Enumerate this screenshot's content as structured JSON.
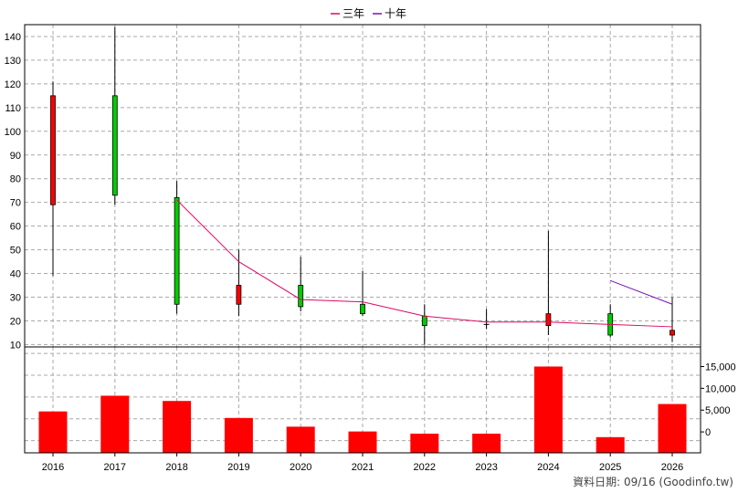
{
  "chart_data": [
    {
      "type": "candlestick",
      "legend": [
        {
          "name": "三年",
          "color": "#dc0a64"
        },
        {
          "name": "十年",
          "color": "#7a10b8"
        }
      ],
      "categories": [
        "2016",
        "2017",
        "2018",
        "2019",
        "2020",
        "2021",
        "2022",
        "2023",
        "2024",
        "2025",
        "2026"
      ],
      "ylim": [
        9,
        145
      ],
      "yticks": [
        10,
        20,
        30,
        40,
        50,
        60,
        70,
        80,
        90,
        100,
        110,
        120,
        130,
        140
      ],
      "grid": true,
      "candles": [
        {
          "year": "2016",
          "open": 69,
          "close": 115,
          "high": 121,
          "low": 39,
          "color": "red"
        },
        {
          "year": "2017",
          "open": 115,
          "close": 73,
          "high": 144,
          "low": 69,
          "color": "green"
        },
        {
          "year": "2018",
          "open": 72,
          "close": 27,
          "high": 79,
          "low": 23,
          "color": "green"
        },
        {
          "year": "2019",
          "open": 27,
          "close": 35,
          "high": 50,
          "low": 22,
          "color": "red"
        },
        {
          "year": "2020",
          "open": 35,
          "close": 26,
          "high": 47,
          "low": 24,
          "color": "green"
        },
        {
          "year": "2021",
          "open": 27,
          "close": 23,
          "high": 41,
          "low": 22,
          "color": "green"
        },
        {
          "year": "2022",
          "open": 22,
          "close": 18,
          "high": 27,
          "low": 10,
          "color": "green"
        },
        {
          "year": "2023",
          "open": 18.5,
          "close": 17.5,
          "high": 25,
          "low": 16.5,
          "color": "flat"
        },
        {
          "year": "2024",
          "open": 18,
          "close": 23,
          "high": 58,
          "low": 14,
          "color": "red"
        },
        {
          "year": "2025",
          "open": 23,
          "close": 14,
          "high": 27,
          "low": 13,
          "color": "green"
        },
        {
          "year": "2026",
          "open": 14,
          "close": 16,
          "high": 30,
          "low": 11,
          "color": "red"
        }
      ],
      "series": [
        {
          "name": "三年",
          "color": "#dc0a64",
          "points": [
            [
              "2018",
              71
            ],
            [
              "2019",
              45
            ],
            [
              "2020",
              29
            ],
            [
              "2021",
              28
            ],
            [
              "2022",
              22
            ],
            [
              "2023",
              19.5
            ],
            [
              "2024",
              19.5
            ],
            [
              "2025",
              18.5
            ],
            [
              "2026",
              17.5
            ]
          ]
        },
        {
          "name": "十年",
          "color": "#7a10b8",
          "points": [
            [
              "2025",
              37
            ],
            [
              "2026",
              27
            ]
          ]
        }
      ]
    },
    {
      "type": "bar",
      "categories": [
        "2016",
        "2017",
        "2018",
        "2019",
        "2020",
        "2021",
        "2022",
        "2023",
        "2024",
        "2025",
        "2026"
      ],
      "values": [
        4700,
        8300,
        7100,
        3200,
        1200,
        100,
        -400,
        -400,
        15000,
        -1200,
        6400
      ],
      "ylim": [
        -4800,
        19500
      ],
      "yticks": [
        0,
        5000,
        10000,
        15000
      ],
      "ytick_labels": [
        "0",
        "5,000",
        "10,000",
        "15,000"
      ],
      "bar_color": "#ff0000"
    }
  ],
  "footer": "資料日期: 09/16  (Goodinfo.tw)"
}
